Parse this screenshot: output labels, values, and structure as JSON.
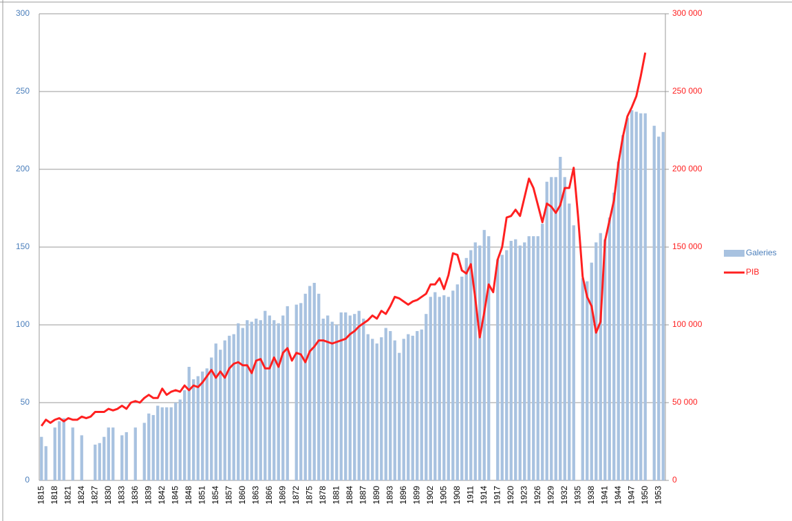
{
  "chart_data": {
    "type": "bar",
    "categories": [
      "1815",
      null,
      null,
      "1818",
      null,
      null,
      "1821",
      null,
      null,
      "1824",
      null,
      null,
      "1827",
      null,
      null,
      "1830",
      null,
      null,
      "1833",
      null,
      null,
      "1836",
      null,
      null,
      "1839",
      null,
      null,
      "1842",
      null,
      null,
      "1845",
      null,
      null,
      "1848",
      null,
      null,
      "1851",
      null,
      null,
      "1854",
      null,
      null,
      "1857",
      null,
      null,
      "1860",
      null,
      null,
      "1863",
      null,
      null,
      "1866",
      null,
      null,
      "1869",
      null,
      null,
      "1872",
      null,
      null,
      "1875",
      null,
      null,
      "1878",
      null,
      null,
      "1881",
      null,
      null,
      "1884",
      null,
      null,
      "1887",
      null,
      null,
      "1890",
      null,
      null,
      "1893",
      null,
      null,
      "1896",
      null,
      null,
      "1899",
      null,
      null,
      "1902",
      null,
      null,
      "1905",
      null,
      null,
      "1908",
      null,
      null,
      "1911",
      null,
      null,
      "1914",
      null,
      null,
      "1917",
      null,
      null,
      "1920",
      null,
      null,
      "1923",
      null,
      null,
      "1926",
      null,
      null,
      "1929",
      null,
      null,
      "1932",
      null,
      null,
      "1935",
      null,
      null,
      "1938",
      null,
      null,
      "1941",
      null,
      null,
      "1944",
      null,
      null,
      "1947",
      null,
      null,
      "1950",
      null,
      null,
      "1953",
      null
    ],
    "series": [
      {
        "name": "Galeries",
        "type": "bar",
        "color": "#a8c2e0",
        "values": [
          28,
          22,
          null,
          34,
          38,
          40,
          null,
          34,
          null,
          29,
          null,
          null,
          23,
          24,
          28,
          34,
          34,
          null,
          29,
          31,
          null,
          34,
          null,
          37,
          43,
          42,
          48,
          47,
          47,
          47,
          50,
          52,
          58,
          73,
          65,
          67,
          70,
          72,
          79,
          88,
          84,
          90,
          93,
          94,
          101,
          98,
          103,
          102,
          104,
          103,
          109,
          106,
          103,
          101,
          106,
          112,
          null,
          113,
          114,
          120,
          125,
          127,
          120,
          104,
          106,
          102,
          100,
          108,
          108,
          106,
          107,
          109,
          104,
          94,
          91,
          88,
          92,
          98,
          96,
          90,
          82,
          91,
          94,
          93,
          96,
          97,
          107,
          118,
          121,
          118,
          119,
          118,
          122,
          126,
          131,
          143,
          148,
          153,
          151,
          161,
          157,
          null,
          142,
          145,
          148,
          154,
          155,
          151,
          153,
          157,
          157,
          157,
          165,
          192,
          195,
          195,
          208,
          195,
          178,
          164,
          null,
          130,
          128,
          140,
          153,
          159,
          155,
          169,
          185,
          205,
          222,
          233,
          238,
          237,
          236,
          236,
          null,
          228,
          221,
          224
        ]
      },
      {
        "name": "PIB",
        "type": "line",
        "axis": "y2",
        "color": "#ff2020",
        "values": [
          35000,
          39000,
          37000,
          39000,
          40000,
          38000,
          40000,
          39000,
          39000,
          41000,
          40000,
          41000,
          44000,
          44000,
          44000,
          46000,
          45000,
          46000,
          48000,
          46000,
          50000,
          51000,
          50000,
          53000,
          55000,
          53000,
          53000,
          59000,
          55000,
          57000,
          58000,
          57000,
          61000,
          58000,
          61000,
          60000,
          63000,
          67000,
          71000,
          66000,
          70000,
          66000,
          72000,
          75000,
          76000,
          74000,
          74000,
          69000,
          77000,
          78000,
          72000,
          72000,
          79000,
          73000,
          82000,
          85000,
          77000,
          82000,
          81000,
          76000,
          83000,
          86000,
          90000,
          90000,
          89000,
          88000,
          89000,
          90000,
          91000,
          94000,
          96000,
          99000,
          101000,
          103000,
          106000,
          104000,
          109000,
          107000,
          112000,
          118000,
          117000,
          115000,
          113000,
          115000,
          116000,
          118000,
          120000,
          126000,
          126000,
          130000,
          123000,
          132000,
          146000,
          145000,
          135000,
          133000,
          139000,
          117000,
          92000,
          108000,
          126000,
          121000,
          142000,
          150000,
          169000,
          170000,
          174000,
          170000,
          182000,
          194000,
          188000,
          177000,
          166000,
          178000,
          176000,
          172000,
          177000,
          188000,
          188000,
          201000,
          169000,
          131000,
          118000,
          112000,
          95000,
          102000,
          154000,
          167000,
          180000,
          204000,
          221000,
          234000,
          240000,
          247000,
          260000,
          275000,
          null,
          null,
          null,
          null
        ]
      }
    ],
    "ylim": [
      0,
      300
    ],
    "yticks": [
      0,
      50,
      100,
      150,
      200,
      250,
      300
    ],
    "y2lim": [
      0,
      300000
    ],
    "y2ticks": [
      {
        "value": 0,
        "label": "0"
      },
      {
        "value": 50000,
        "label": "50 000"
      },
      {
        "value": 100000,
        "label": "100 000"
      },
      {
        "value": 150000,
        "label": "150 000"
      },
      {
        "value": 200000,
        "label": "200 000"
      },
      {
        "value": 250000,
        "label": "250 000"
      },
      {
        "value": 300000,
        "label": "300 000"
      }
    ],
    "grid": true,
    "legend": "right"
  }
}
